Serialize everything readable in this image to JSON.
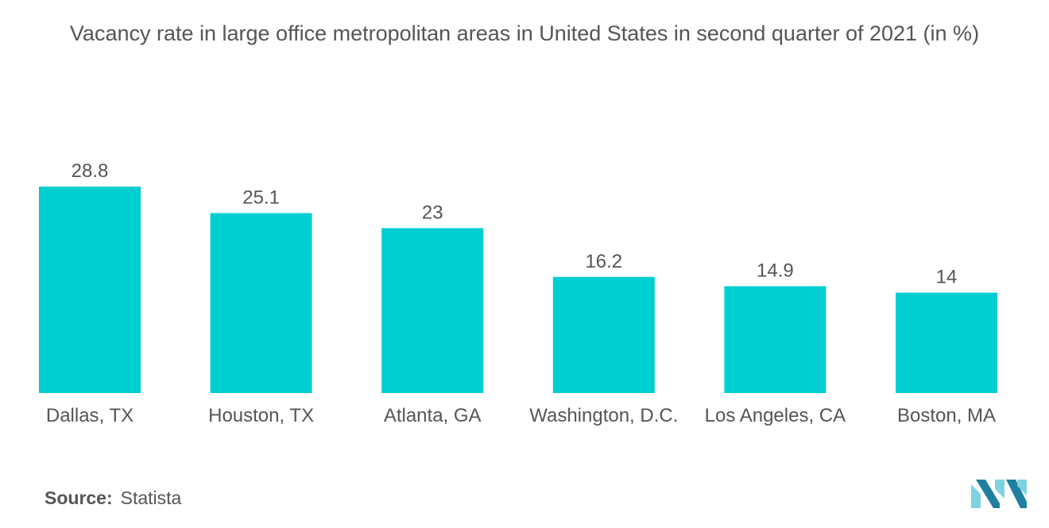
{
  "chart_data": {
    "type": "bar",
    "title": "Vacancy rate in large office metropolitan areas in United States in second quarter of 2021 (in %)",
    "categories": [
      "Dallas, TX",
      "Houston, TX",
      "Atlanta, GA",
      "Washington, D.C.",
      "Los Angeles, CA",
      "Boston, MA"
    ],
    "values": [
      28.8,
      25.1,
      23,
      16.2,
      14.9,
      14
    ],
    "value_labels": [
      "28.8",
      "25.1",
      "23",
      "16.2",
      "14.9",
      "14"
    ],
    "xlabel": "",
    "ylabel": "",
    "ylim": [
      0,
      28.8
    ],
    "grid": false,
    "bar_color": "#00CED1"
  },
  "source": {
    "label": "Source:",
    "value": "Statista"
  },
  "colors": {
    "text": "#555555",
    "logo_light": "#7FD3E0",
    "logo_dark": "#1E7FA0"
  }
}
